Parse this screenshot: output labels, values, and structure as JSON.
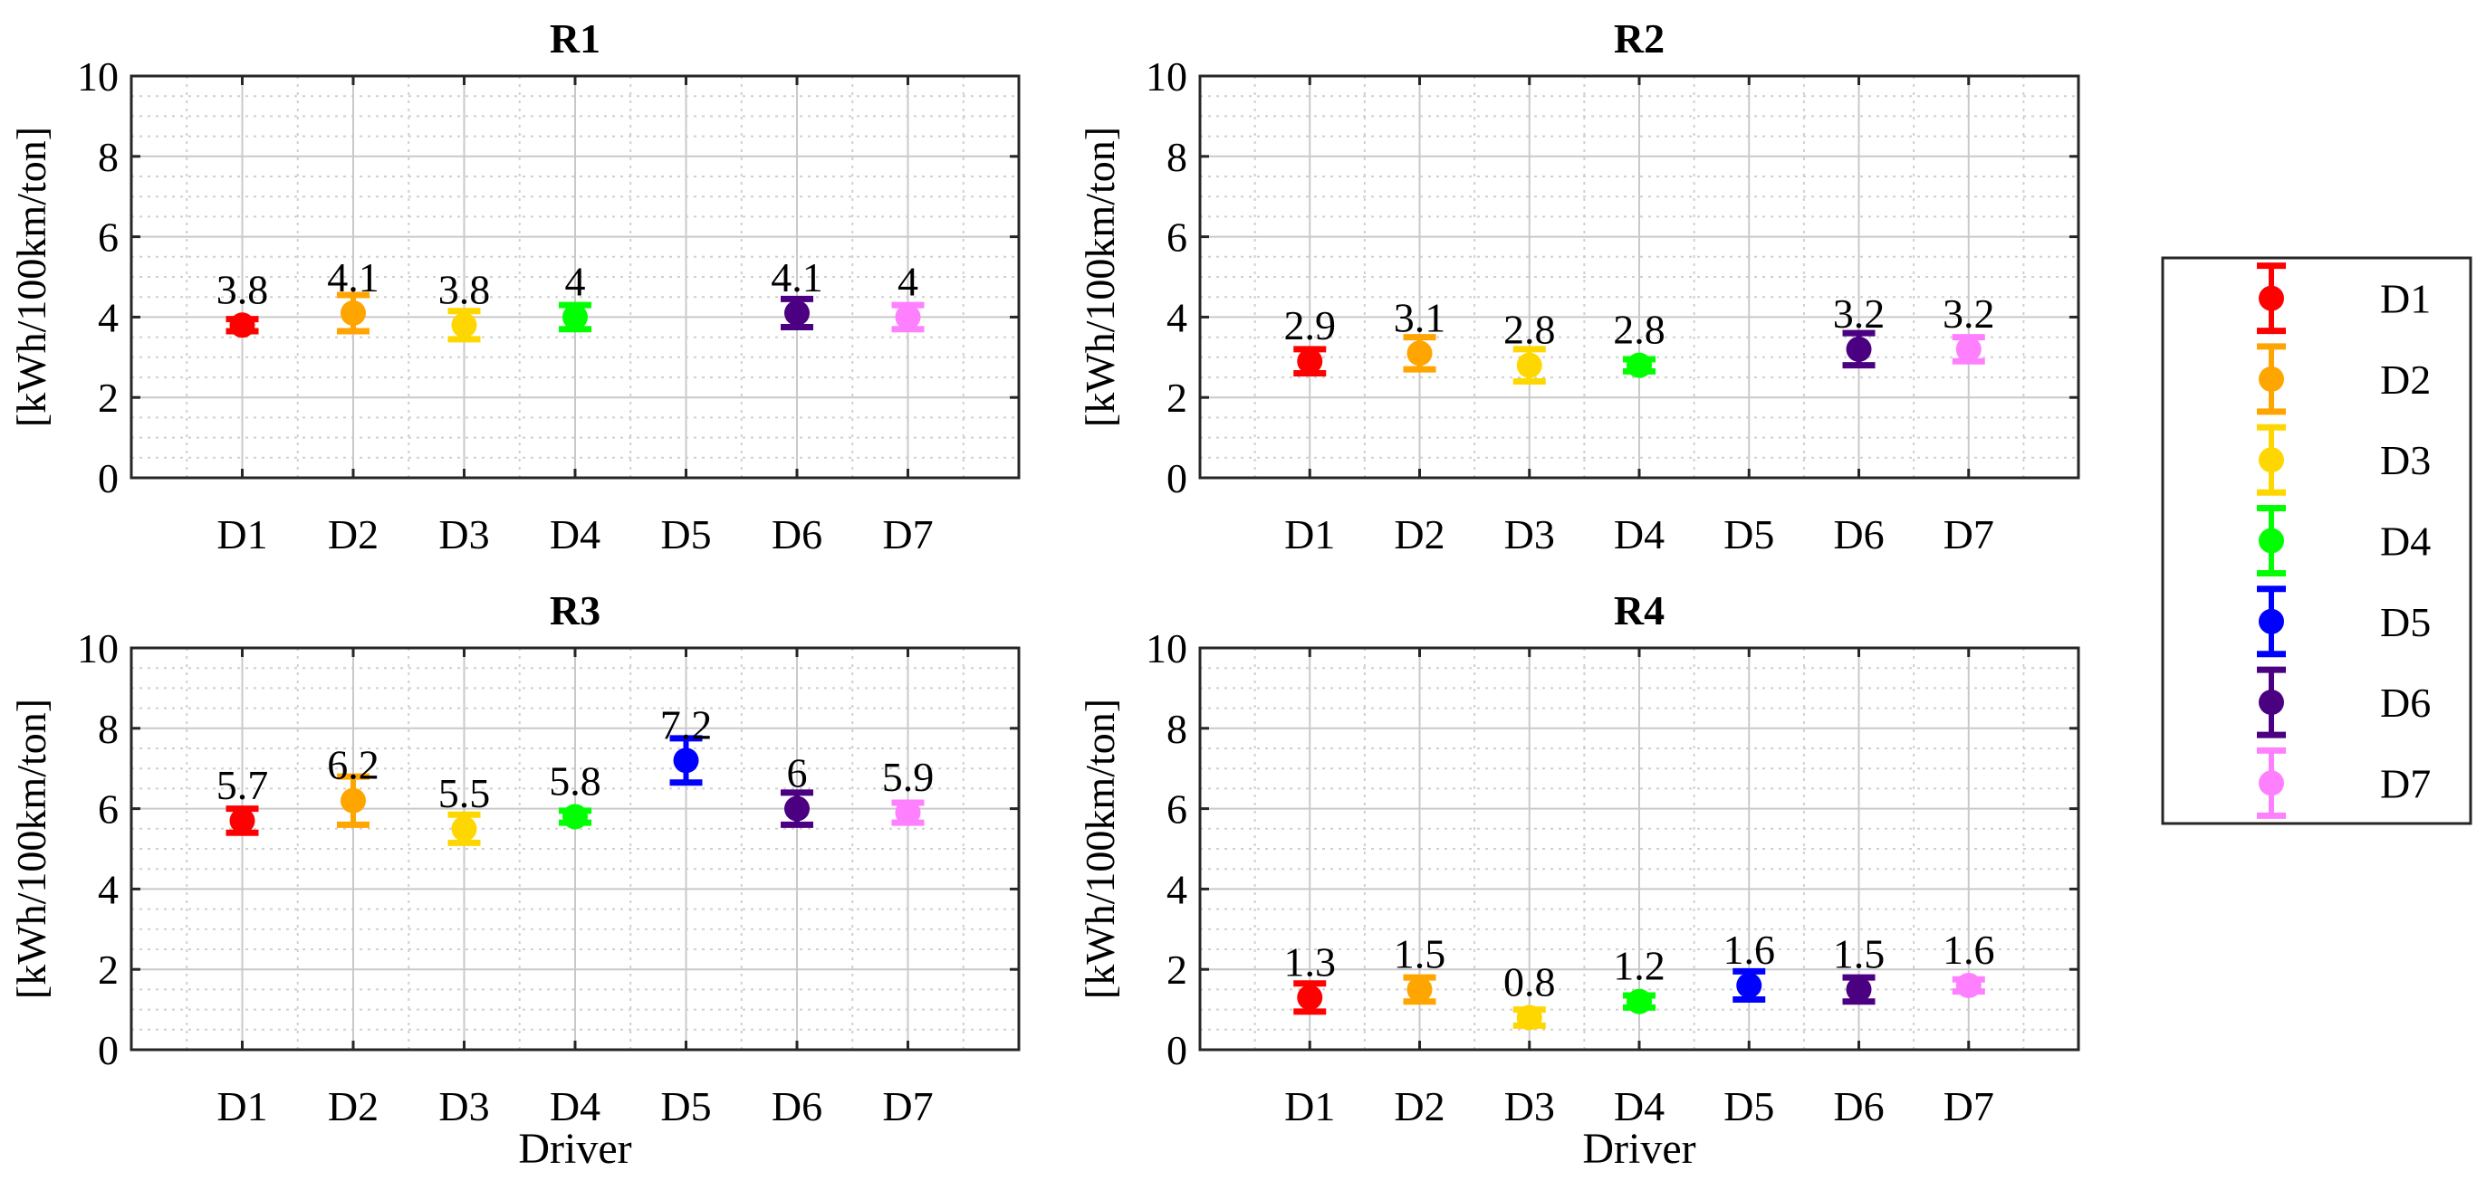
{
  "chart_data": [
    {
      "type": "errorbar",
      "title": "R1",
      "ylabel": "[kWh/100km/ton]",
      "xlabel": "",
      "ylim": [
        0,
        10
      ],
      "yticks": [
        "0",
        "2",
        "4",
        "6",
        "8",
        "10"
      ],
      "grid": true,
      "categories": [
        "D1",
        "D2",
        "D3",
        "D4",
        "D5",
        "D6",
        "D7"
      ],
      "values": [
        3.8,
        4.1,
        3.8,
        4.0,
        null,
        4.1,
        4.0
      ],
      "errors": [
        0.15,
        0.45,
        0.35,
        0.3,
        null,
        0.35,
        0.3
      ],
      "labels": [
        "3.8",
        "4.1",
        "3.8",
        "4",
        "",
        "4.1",
        "4"
      ]
    },
    {
      "type": "errorbar",
      "title": "R2",
      "ylabel": "[kWh/100km/ton]",
      "xlabel": "",
      "ylim": [
        0,
        10
      ],
      "yticks": [
        "0",
        "2",
        "4",
        "6",
        "8",
        "10"
      ],
      "grid": true,
      "categories": [
        "D1",
        "D2",
        "D3",
        "D4",
        "D5",
        "D6",
        "D7"
      ],
      "values": [
        2.9,
        3.1,
        2.8,
        2.8,
        null,
        3.2,
        3.2
      ],
      "errors": [
        0.3,
        0.4,
        0.4,
        0.15,
        null,
        0.4,
        0.3
      ],
      "labels": [
        "2.9",
        "3.1",
        "2.8",
        "2.8",
        "",
        "3.2",
        "3.2"
      ]
    },
    {
      "type": "errorbar",
      "title": "R3",
      "ylabel": "[kWh/100km/ton]",
      "xlabel": "Driver",
      "ylim": [
        0,
        10
      ],
      "yticks": [
        "0",
        "2",
        "4",
        "6",
        "8",
        "10"
      ],
      "grid": true,
      "categories": [
        "D1",
        "D2",
        "D3",
        "D4",
        "D5",
        "D6",
        "D7"
      ],
      "values": [
        5.7,
        6.2,
        5.5,
        5.8,
        7.2,
        6.0,
        5.9
      ],
      "errors": [
        0.3,
        0.6,
        0.35,
        0.15,
        0.55,
        0.4,
        0.25
      ],
      "labels": [
        "5.7",
        "6.2",
        "5.5",
        "5.8",
        "7.2",
        "6",
        "5.9"
      ]
    },
    {
      "type": "errorbar",
      "title": "R4",
      "ylabel": "[kWh/100km/ton]",
      "xlabel": "Driver",
      "ylim": [
        0,
        10
      ],
      "yticks": [
        "0",
        "2",
        "4",
        "6",
        "8",
        "10"
      ],
      "grid": true,
      "categories": [
        "D1",
        "D2",
        "D3",
        "D4",
        "D5",
        "D6",
        "D7"
      ],
      "values": [
        1.3,
        1.5,
        0.8,
        1.2,
        1.6,
        1.5,
        1.6
      ],
      "errors": [
        0.35,
        0.3,
        0.2,
        0.15,
        0.35,
        0.3,
        0.15
      ],
      "labels": [
        "1.3",
        "1.5",
        "0.8",
        "1.2",
        "1.6",
        "1.5",
        "1.6"
      ]
    }
  ],
  "legend": {
    "placement": "right",
    "entries": [
      {
        "name": "D1",
        "color": "#ff0000"
      },
      {
        "name": "D2",
        "color": "#ffa500"
      },
      {
        "name": "D3",
        "color": "#ffd700"
      },
      {
        "name": "D4",
        "color": "#00ff00"
      },
      {
        "name": "D5",
        "color": "#0000ff"
      },
      {
        "name": "D6",
        "color": "#4b0082"
      },
      {
        "name": "D7",
        "color": "#ff80ff"
      }
    ]
  }
}
